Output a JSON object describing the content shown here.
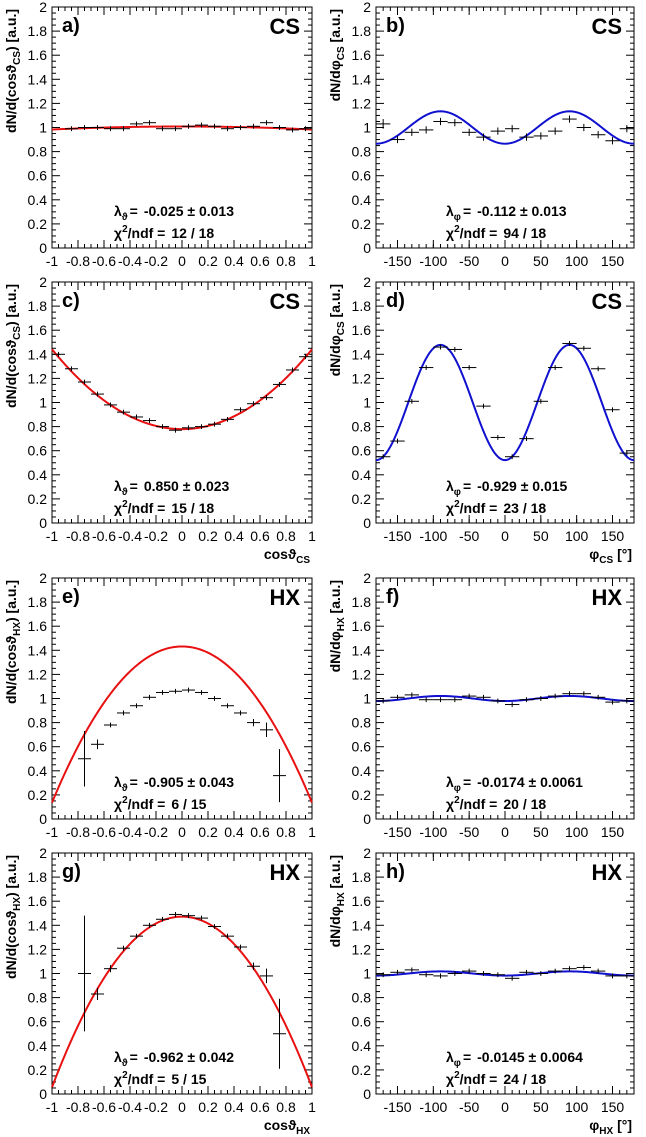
{
  "chart_data": [
    {
      "panel": "a)",
      "frame": "CS",
      "type": "scatter",
      "ylabel_main": "dN/d(cos",
      "ylabel_sym": "ϑ",
      "ylabel_sub": "CS",
      "ylabel_tail": ") [a.u.]",
      "xlabel_main": "",
      "xlabel_sub": "",
      "xlabel_tail": "",
      "xlim": [
        -1,
        1
      ],
      "ylim": [
        0,
        2
      ],
      "xticks": [
        "-1",
        "-0.8",
        "-0.6",
        "-0.4",
        "-0.2",
        "0",
        "0.2",
        "0.4",
        "0.6",
        "0.8",
        "1"
      ],
      "yticks": [
        "0",
        "0.2",
        "0.4",
        "0.6",
        "0.8",
        "1",
        "1.2",
        "1.4",
        "1.6",
        "1.8",
        "2"
      ],
      "fit": {
        "kind": "cos",
        "lambda": -0.025,
        "curve_color": "#e81010"
      },
      "stat_sym": "ϑ",
      "stat_value": "-0.025 ± 0.013",
      "chi2": "12 / 18",
      "points": {
        "x": [
          -0.85,
          -0.75,
          -0.65,
          -0.55,
          -0.45,
          -0.35,
          -0.25,
          -0.15,
          -0.05,
          0.05,
          0.15,
          0.25,
          0.35,
          0.45,
          0.55,
          0.65,
          0.75,
          0.85,
          0.95
        ],
        "y": [
          0.99,
          1.0,
          1.0,
          0.99,
          0.99,
          1.03,
          1.04,
          0.99,
          0.99,
          1.01,
          1.02,
          1.01,
          0.99,
          1.0,
          1.01,
          1.04,
          1.0,
          0.98,
          0.99
        ],
        "err": [
          0.02,
          0.02,
          0.02,
          0.02,
          0.02,
          0.02,
          0.02,
          0.02,
          0.02,
          0.02,
          0.02,
          0.02,
          0.02,
          0.02,
          0.02,
          0.02,
          0.02,
          0.02,
          0.02
        ],
        "halfwidth": 0.05
      }
    },
    {
      "panel": "b)",
      "frame": "CS",
      "type": "scatter",
      "ylabel_main": "dN/d",
      "ylabel_sym": "φ",
      "ylabel_sub": "CS",
      "ylabel_tail": " [a.u.]",
      "xlabel_main": "",
      "xlabel_sub": "",
      "xlabel_tail": "",
      "xlim": [
        -180,
        180
      ],
      "ylim": [
        0,
        2
      ],
      "xticks": [
        "-150",
        "-100",
        "-50",
        "0",
        "50",
        "100",
        "150"
      ],
      "yticks": [
        "0",
        "0.2",
        "0.4",
        "0.6",
        "0.8",
        "1",
        "1.2",
        "1.4",
        "1.6",
        "1.8",
        "2"
      ],
      "fit": {
        "kind": "phi",
        "lambda": -0.112,
        "curve_color": "#1010d0"
      },
      "stat_sym": "φ",
      "stat_value": "-0.112 ± 0.013",
      "chi2": "94 / 18",
      "points": {
        "x": [
          -170,
          -150,
          -130,
          -110,
          -90,
          -70,
          -50,
          -30,
          -10,
          10,
          30,
          50,
          70,
          90,
          110,
          130,
          150,
          170
        ],
        "y": [
          1.03,
          0.9,
          0.96,
          0.98,
          1.05,
          1.04,
          0.96,
          0.92,
          0.97,
          0.99,
          0.92,
          0.93,
          0.97,
          1.07,
          1.0,
          0.94,
          0.89,
          0.99
        ],
        "err": [
          0.04,
          0.03,
          0.03,
          0.03,
          0.03,
          0.03,
          0.03,
          0.03,
          0.03,
          0.03,
          0.03,
          0.03,
          0.03,
          0.03,
          0.03,
          0.03,
          0.03,
          0.03
        ],
        "halfwidth": 10
      }
    },
    {
      "panel": "c)",
      "frame": "CS",
      "type": "scatter",
      "ylabel_main": "dN/d(cos",
      "ylabel_sym": "ϑ",
      "ylabel_sub": "CS",
      "ylabel_tail": ") [a.u.]",
      "xlabel_main": "cos",
      "xlabel_sym": "ϑ",
      "xlabel_sub": "CS",
      "xlabel_tail": "",
      "xlim": [
        -1,
        1
      ],
      "ylim": [
        0,
        2
      ],
      "xticks": [
        "-1",
        "-0.8",
        "-0.6",
        "-0.4",
        "-0.2",
        "0",
        "0.2",
        "0.4",
        "0.6",
        "0.8",
        "1"
      ],
      "yticks": [
        "0",
        "0.2",
        "0.4",
        "0.6",
        "0.8",
        "1",
        "1.2",
        "1.4",
        "1.6",
        "1.8",
        "2"
      ],
      "fit": {
        "kind": "cos",
        "lambda": 0.85,
        "curve_color": "#e81010"
      },
      "stat_sym": "ϑ",
      "stat_value": "0.850 ± 0.023",
      "chi2": "15 / 18",
      "points": {
        "x": [
          -0.95,
          -0.85,
          -0.75,
          -0.65,
          -0.55,
          -0.45,
          -0.35,
          -0.25,
          -0.15,
          -0.05,
          0.05,
          0.15,
          0.25,
          0.35,
          0.45,
          0.55,
          0.65,
          0.75,
          0.85,
          0.95
        ],
        "y": [
          1.4,
          1.28,
          1.17,
          1.07,
          0.98,
          0.92,
          0.88,
          0.85,
          0.8,
          0.77,
          0.79,
          0.8,
          0.82,
          0.86,
          0.94,
          0.99,
          1.04,
          1.15,
          1.27,
          1.38
        ],
        "err": [
          0.02,
          0.02,
          0.02,
          0.02,
          0.02,
          0.02,
          0.02,
          0.02,
          0.02,
          0.02,
          0.02,
          0.02,
          0.02,
          0.02,
          0.02,
          0.02,
          0.02,
          0.02,
          0.02,
          0.02
        ],
        "halfwidth": 0.05
      }
    },
    {
      "panel": "d)",
      "frame": "CS",
      "type": "scatter",
      "ylabel_main": "dN/d",
      "ylabel_sym": "φ",
      "ylabel_sub": "CS",
      "ylabel_tail": " [a.u.]",
      "xlabel_main": "",
      "xlabel_sym": "φ",
      "xlabel_sub": "CS",
      "xlabel_tail": " [°]",
      "xlim": [
        -180,
        180
      ],
      "ylim": [
        0,
        2
      ],
      "xticks": [
        "-150",
        "-100",
        "-50",
        "0",
        "50",
        "100",
        "150"
      ],
      "yticks": [
        "0",
        "0.2",
        "0.4",
        "0.6",
        "0.8",
        "1",
        "1.2",
        "1.4",
        "1.6",
        "1.8",
        "2"
      ],
      "fit": {
        "kind": "phi",
        "lambda": -0.929,
        "curve_color": "#1010d0"
      },
      "stat_sym": "φ",
      "stat_value": "-0.929 ± 0.015",
      "chi2": "23 / 18",
      "points": {
        "x": [
          -170,
          -150,
          -130,
          -110,
          -90,
          -70,
          -50,
          -30,
          -10,
          10,
          30,
          50,
          70,
          90,
          110,
          130,
          150,
          170
        ],
        "y": [
          0.55,
          0.68,
          1.01,
          1.29,
          1.46,
          1.44,
          1.29,
          0.97,
          0.71,
          0.55,
          0.7,
          1.01,
          1.29,
          1.49,
          1.45,
          1.28,
          0.94,
          0.58
        ],
        "err": [
          0.02,
          0.02,
          0.02,
          0.02,
          0.02,
          0.02,
          0.02,
          0.02,
          0.02,
          0.02,
          0.02,
          0.02,
          0.02,
          0.02,
          0.02,
          0.02,
          0.02,
          0.02
        ],
        "halfwidth": 10
      }
    },
    {
      "panel": "e)",
      "frame": "HX",
      "type": "scatter",
      "ylabel_main": "dN/d(cos",
      "ylabel_sym": "ϑ",
      "ylabel_sub": "HX",
      "ylabel_tail": ") [a.u.]",
      "xlabel_main": "",
      "xlabel_sub": "",
      "xlabel_tail": "",
      "xlim": [
        -1,
        1
      ],
      "ylim": [
        0,
        2
      ],
      "xticks": [
        "-1",
        "-0.8",
        "-0.6",
        "-0.4",
        "-0.2",
        "0",
        "0.2",
        "0.4",
        "0.6",
        "0.8",
        "1"
      ],
      "yticks": [
        "0",
        "0.2",
        "0.4",
        "0.6",
        "0.8",
        "1",
        "1.2",
        "1.4",
        "1.6",
        "1.8",
        "2"
      ],
      "fit": {
        "kind": "cos",
        "lambda": -0.905,
        "curve_color": "#e81010"
      },
      "stat_sym": "ϑ",
      "stat_value": "-0.905 ± 0.043",
      "chi2": "6 / 15",
      "points": {
        "x": [
          -0.75,
          -0.65,
          -0.55,
          -0.45,
          -0.35,
          -0.25,
          -0.15,
          -0.05,
          0.05,
          0.15,
          0.25,
          0.35,
          0.45,
          0.55,
          0.65,
          0.75
        ],
        "y": [
          0.5,
          0.62,
          0.78,
          0.88,
          0.94,
          1.01,
          1.05,
          1.06,
          1.07,
          1.05,
          1.0,
          0.94,
          0.88,
          0.8,
          0.74,
          0.36
        ],
        "err": [
          0.23,
          0.04,
          0.02,
          0.02,
          0.02,
          0.02,
          0.02,
          0.02,
          0.02,
          0.02,
          0.02,
          0.02,
          0.02,
          0.03,
          0.06,
          0.22
        ],
        "halfwidth": 0.05
      }
    },
    {
      "panel": "f)",
      "frame": "HX",
      "type": "scatter",
      "ylabel_main": "dN/d",
      "ylabel_sym": "φ",
      "ylabel_sub": "HX",
      "ylabel_tail": " [a.u.]",
      "xlabel_main": "",
      "xlabel_sub": "",
      "xlabel_tail": "",
      "xlim": [
        -180,
        180
      ],
      "ylim": [
        0,
        2
      ],
      "xticks": [
        "-150",
        "-100",
        "-50",
        "0",
        "50",
        "100",
        "150"
      ],
      "yticks": [
        "0",
        "0.2",
        "0.4",
        "0.6",
        "0.8",
        "1",
        "1.2",
        "1.4",
        "1.6",
        "1.8",
        "2"
      ],
      "fit": {
        "kind": "phi",
        "lambda": -0.0174,
        "curve_color": "#1010d0"
      },
      "stat_sym": "φ",
      "stat_value": "-0.0174 ± 0.0061",
      "chi2": "20 / 18",
      "points": {
        "x": [
          -170,
          -150,
          -130,
          -110,
          -90,
          -70,
          -50,
          -30,
          -10,
          10,
          30,
          50,
          70,
          90,
          110,
          130,
          150,
          170
        ],
        "y": [
          0.98,
          1.01,
          1.03,
          0.99,
          0.99,
          0.99,
          1.02,
          1.01,
          0.98,
          0.95,
          0.99,
          1.0,
          1.02,
          1.04,
          1.04,
          1.01,
          0.97,
          0.98
        ],
        "err": [
          0.02,
          0.02,
          0.02,
          0.02,
          0.02,
          0.02,
          0.02,
          0.02,
          0.02,
          0.02,
          0.02,
          0.02,
          0.02,
          0.02,
          0.02,
          0.02,
          0.02,
          0.02
        ],
        "halfwidth": 10
      }
    },
    {
      "panel": "g)",
      "frame": "HX",
      "type": "scatter",
      "ylabel_main": "dN/d(cos",
      "ylabel_sym": "ϑ",
      "ylabel_sub": "HX",
      "ylabel_tail": ") [a.u.]",
      "xlabel_main": "cos",
      "xlabel_sym": "ϑ",
      "xlabel_sub": "HX",
      "xlabel_tail": "",
      "xlim": [
        -1,
        1
      ],
      "ylim": [
        0,
        2
      ],
      "xticks": [
        "-1",
        "-0.8",
        "-0.6",
        "-0.4",
        "-0.2",
        "0",
        "0.2",
        "0.4",
        "0.6",
        "0.8",
        "1"
      ],
      "yticks": [
        "0",
        "0.2",
        "0.4",
        "0.6",
        "0.8",
        "1",
        "1.2",
        "1.4",
        "1.6",
        "1.8",
        "2"
      ],
      "fit": {
        "kind": "cos",
        "lambda": -0.962,
        "curve_color": "#e81010"
      },
      "stat_sym": "ϑ",
      "stat_value": "-0.962 ± 0.042",
      "chi2": "5 / 15",
      "points": {
        "x": [
          -0.75,
          -0.65,
          -0.55,
          -0.45,
          -0.35,
          -0.25,
          -0.15,
          -0.05,
          0.05,
          0.15,
          0.25,
          0.35,
          0.45,
          0.55,
          0.65,
          0.75
        ],
        "y": [
          1.0,
          0.83,
          1.04,
          1.21,
          1.31,
          1.4,
          1.45,
          1.49,
          1.48,
          1.46,
          1.39,
          1.31,
          1.22,
          1.06,
          0.98,
          0.5
        ],
        "err": [
          0.48,
          0.05,
          0.03,
          0.02,
          0.02,
          0.02,
          0.02,
          0.02,
          0.02,
          0.02,
          0.02,
          0.02,
          0.02,
          0.03,
          0.06,
          0.29
        ],
        "halfwidth": 0.05
      }
    },
    {
      "panel": "h)",
      "frame": "HX",
      "type": "scatter",
      "ylabel_main": "dN/d",
      "ylabel_sym": "φ",
      "ylabel_sub": "HX",
      "ylabel_tail": " [a.u.]",
      "xlabel_main": "",
      "xlabel_sym": "φ",
      "xlabel_sub": "HX",
      "xlabel_tail": " [°]",
      "xlim": [
        -180,
        180
      ],
      "ylim": [
        0,
        2
      ],
      "xticks": [
        "-150",
        "-100",
        "-50",
        "0",
        "50",
        "100",
        "150"
      ],
      "yticks": [
        "0",
        "0.2",
        "0.4",
        "0.6",
        "0.8",
        "1",
        "1.2",
        "1.4",
        "1.6",
        "1.8",
        "2"
      ],
      "fit": {
        "kind": "phi",
        "lambda": -0.0145,
        "curve_color": "#1010d0"
      },
      "stat_sym": "φ",
      "stat_value": "-0.0145 ± 0.0064",
      "chi2": "24 / 18",
      "points": {
        "x": [
          -170,
          -150,
          -130,
          -110,
          -90,
          -70,
          -50,
          -30,
          -10,
          10,
          30,
          50,
          70,
          90,
          110,
          130,
          150,
          170
        ],
        "y": [
          0.99,
          1.01,
          1.03,
          0.99,
          0.98,
          1.0,
          1.02,
          1.0,
          0.99,
          0.96,
          1.01,
          1.0,
          1.02,
          1.04,
          1.05,
          1.02,
          0.98,
          0.98
        ],
        "err": [
          0.02,
          0.02,
          0.02,
          0.02,
          0.02,
          0.02,
          0.02,
          0.02,
          0.02,
          0.02,
          0.02,
          0.02,
          0.02,
          0.02,
          0.02,
          0.02,
          0.02,
          0.02
        ],
        "halfwidth": 10
      }
    }
  ],
  "labels": {
    "chi2_prefix": "χ",
    "chi2_sup": "2",
    "chi2_suffix": "/ndf =",
    "lambda_sym": "λ",
    "equals": "="
  }
}
